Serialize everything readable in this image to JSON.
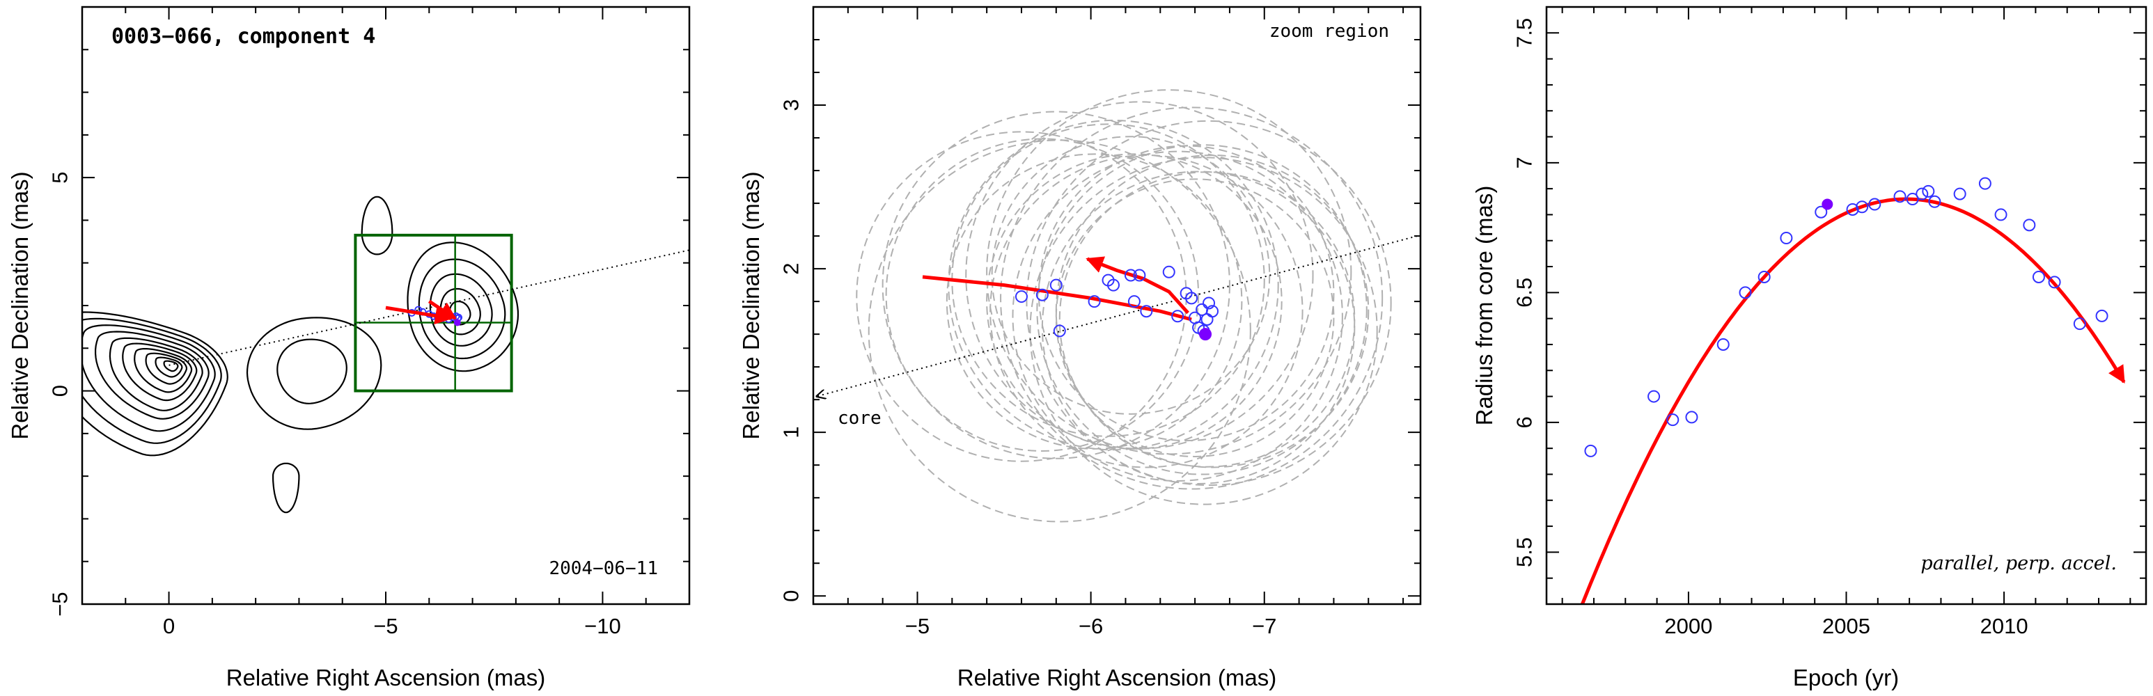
{
  "chart_data": [
    {
      "type": "contour",
      "title": "0003−066, component 4",
      "xlabel": "Relative Right Ascension (mas)",
      "ylabel": "Relative Declination (mas)",
      "xlim": [
        2,
        -12
      ],
      "ylim": [
        -5,
        9
      ],
      "xticks": [
        0,
        -5,
        -10
      ],
      "xtick_labels": [
        "0",
        "−5",
        "−10"
      ],
      "yticks": [
        -5,
        0,
        5
      ],
      "ytick_labels": [
        "−5",
        "0",
        "5"
      ],
      "annotation": "2004−06−11",
      "core": [
        0,
        0.6
      ],
      "contour_sources": [
        {
          "x": -0.1,
          "y": 0.6,
          "levels": [
            [
              1.3,
              2.9,
              0.8,
              2.2,
              -20
            ],
            [
              1.15,
              2.55,
              0.7,
              1.9,
              -20
            ],
            [
              1.0,
              2.2,
              0.6,
              1.6,
              -20
            ],
            [
              0.85,
              1.85,
              0.5,
              1.3,
              -20
            ],
            [
              0.7,
              1.5,
              0.4,
              1.1,
              -20
            ],
            [
              0.56,
              1.2,
              0.32,
              0.85,
              -20
            ],
            [
              0.44,
              0.92,
              0.24,
              0.65,
              -20
            ],
            [
              0.32,
              0.65,
              0.18,
              0.45,
              -20
            ],
            [
              0.21,
              0.42,
              0.12,
              0.28,
              -20
            ],
            [
              0.11,
              0.22,
              0.07,
              0.14,
              -20
            ]
          ]
        },
        {
          "x": -6.7,
          "y": 1.8,
          "levels": [
            [
              1.35,
              1.15,
              1.7,
              1.35,
              15
            ],
            [
              1.05,
              0.9,
              1.3,
              1.05,
              15
            ],
            [
              0.75,
              0.65,
              0.95,
              0.75,
              15
            ],
            [
              0.48,
              0.42,
              0.6,
              0.48,
              15
            ],
            [
              0.25,
              0.22,
              0.3,
              0.25,
              15
            ]
          ]
        },
        {
          "x": -3.2,
          "y": 0.5,
          "levels": [
            [
              1.7,
              1.4,
              1.2,
              1.4,
              10
            ],
            [
              0.9,
              0.7,
              0.7,
              0.8,
              10
            ]
          ]
        },
        {
          "x": -4.8,
          "y": 3.7,
          "levels": [
            [
              0.35,
              0.35,
              0.85,
              0.5,
              0
            ]
          ]
        },
        {
          "x": -2.7,
          "y": -2.0,
          "levels": [
            [
              0.3,
              0.3,
              0.3,
              0.85,
              0
            ]
          ]
        }
      ],
      "zoom_box": {
        "x": [
          -4.3,
          -7.9
        ],
        "y": [
          0,
          3.65
        ]
      },
      "crosshair": {
        "x": -6.6,
        "y": 1.6
      },
      "trajectory_segments": [
        {
          "x": [
            -5.0,
            -6.5
          ],
          "y": [
            1.95,
            1.7
          ]
        },
        {
          "x": [
            -6.0,
            -6.6
          ],
          "y": [
            2.1,
            1.7
          ]
        }
      ],
      "points_x": [
        -5.6,
        -5.75,
        -5.85,
        -6.0,
        -6.1,
        -6.2,
        -6.3,
        -6.45,
        -6.55,
        -6.62,
        -6.66,
        -6.68
      ],
      "points_y": [
        1.83,
        1.9,
        1.85,
        1.8,
        1.75,
        1.72,
        1.7,
        1.68,
        1.73,
        1.75,
        1.7,
        1.72
      ],
      "highlight": [
        -6.65,
        1.6
      ]
    },
    {
      "type": "scatter",
      "xlabel": "Relative Right Ascension (mas)",
      "ylabel": "Relative Declination (mas)",
      "xlim": [
        -4.4,
        -7.9
      ],
      "ylim": [
        -0.05,
        3.6
      ],
      "xticks": [
        -5,
        -6,
        -7
      ],
      "xtick_labels": [
        "−5",
        "−6",
        "−7"
      ],
      "yticks": [
        0,
        1,
        2,
        3
      ],
      "ytick_labels": [
        "0",
        "1",
        "2",
        "3"
      ],
      "annotation": "zoom region",
      "core_label": "core",
      "core_arrow_end": [
        -4.42,
        1.22
      ],
      "x": [
        -5.6,
        -5.72,
        -5.8,
        -5.82,
        -6.02,
        -6.1,
        -6.13,
        -6.23,
        -6.25,
        -6.28,
        -6.32,
        -6.45,
        -6.5,
        -6.55,
        -6.58,
        -6.6,
        -6.62,
        -6.64,
        -6.65,
        -6.67,
        -6.68,
        -6.7
      ],
      "y": [
        1.83,
        1.84,
        1.9,
        1.62,
        1.8,
        1.93,
        1.9,
        1.96,
        1.8,
        1.96,
        1.74,
        1.98,
        1.71,
        1.85,
        1.82,
        1.7,
        1.64,
        1.75,
        1.62,
        1.69,
        1.79,
        1.74
      ],
      "beam_radius": [
        0.95,
        0.9,
        1.0,
        1.1,
        0.85,
        0.9,
        0.95,
        0.8,
        0.85,
        1.0,
        0.9,
        1.05,
        0.95,
        0.85,
        1.1,
        0.8,
        0.9,
        0.95,
        1.0,
        0.85,
        1.05,
        0.9
      ],
      "highlight": [
        -6.66,
        1.6
      ],
      "track": {
        "x": [
          -5.03,
          -5.5,
          -6.0,
          -6.4,
          -6.58
        ],
        "y": [
          1.95,
          1.9,
          1.82,
          1.74,
          1.69
        ]
      },
      "accel_arrow": {
        "x": [
          -6.56,
          -6.45,
          -6.3,
          -6.15,
          -5.98
        ],
        "y": [
          1.73,
          1.86,
          1.94,
          1.99,
          2.06
        ]
      },
      "jet_axis": {
        "x": [
          -4.42,
          -7.88
        ],
        "y": [
          1.22,
          2.2
        ]
      }
    },
    {
      "type": "scatter",
      "xlabel": "Epoch (yr)",
      "ylabel": "Radius from core (mas)",
      "xlim": [
        1995.5,
        2014.5
      ],
      "ylim": [
        5.3,
        7.6
      ],
      "xticks": [
        2000,
        2005,
        2010
      ],
      "xtick_labels": [
        "2000",
        "2005",
        "2010"
      ],
      "yticks": [
        5.5,
        6,
        6.5,
        7,
        7.5
      ],
      "ytick_labels": [
        "5.5",
        "6",
        "6.5",
        "7",
        "7.5"
      ],
      "annotation": "parallel, perp. accel.",
      "x": [
        1996.9,
        1998.9,
        1999.5,
        2000.1,
        2001.1,
        2001.8,
        2002.4,
        2003.1,
        2004.2,
        2005.2,
        2005.5,
        2005.9,
        2006.7,
        2007.1,
        2007.4,
        2007.6,
        2007.8,
        2008.6,
        2009.4,
        2009.9,
        2010.8,
        2011.1,
        2011.6,
        2012.4,
        2013.1
      ],
      "y": [
        5.89,
        6.1,
        6.01,
        6.02,
        6.3,
        6.5,
        6.56,
        6.71,
        6.81,
        6.82,
        6.83,
        6.84,
        6.87,
        6.86,
        6.88,
        6.89,
        6.85,
        6.88,
        6.92,
        6.8,
        6.76,
        6.56,
        6.54,
        6.38,
        6.41
      ],
      "highlight": [
        2004.4,
        6.84
      ],
      "fit": {
        "peak_epoch": 2006.9,
        "peak_radius": 6.86,
        "curvature": 0.0148,
        "x_range": [
          1996.1,
          2013.8
        ]
      }
    }
  ]
}
